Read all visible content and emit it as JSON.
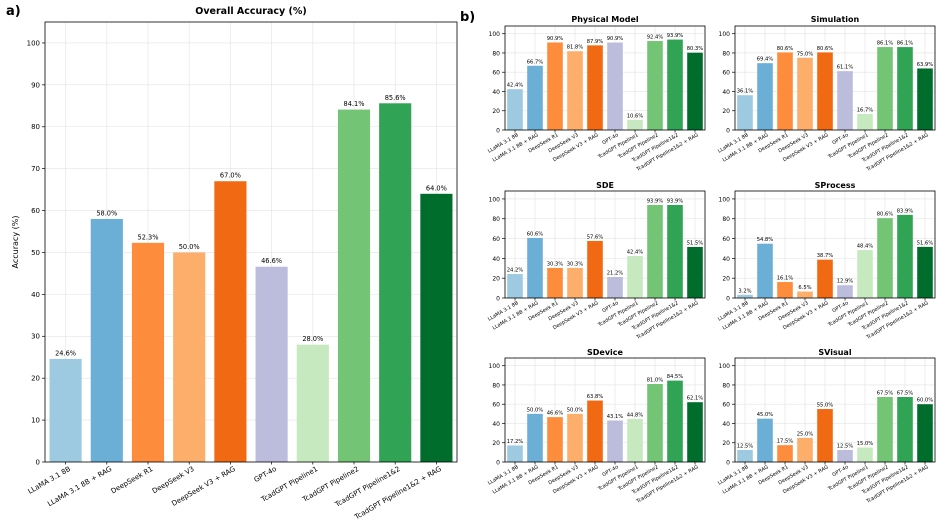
{
  "panel_a_label": "a)",
  "panel_b_label": "b)",
  "colors": [
    "#9ecae1",
    "#6baed6",
    "#fd8d3c",
    "#fdae6b",
    "#f16913",
    "#bcbddc",
    "#c7e9c0",
    "#74c476",
    "#31a354",
    "#006d2c"
  ],
  "chart_data": [
    {
      "type": "bar",
      "title": "Overall Accuracy (%)",
      "xlabel": "",
      "ylabel": "Accuracy (%)",
      "ylim": [
        0,
        105
      ],
      "yticks": [
        0,
        10,
        20,
        30,
        40,
        50,
        60,
        70,
        80,
        90,
        100
      ],
      "grid": true,
      "categories": [
        "LLaMA 3.1 8B",
        "LLaMA 3.1 8B + RAG",
        "DeepSeek R1",
        "DeepSeek V3",
        "DeepSeek V3 + RAG",
        "GPT-4o",
        "TcadGPT Pipeline1",
        "TcadGPT Pipeline2",
        "TcadGPT Pipeline1&2",
        "TcadGPT Pipeline1&2 + RAG"
      ],
      "values": [
        24.6,
        58.0,
        52.3,
        50.0,
        67.0,
        46.6,
        28.0,
        84.1,
        85.6,
        64.0
      ],
      "value_labels": [
        "24.6%",
        "58.0%",
        "52.3%",
        "50.0%",
        "67.0%",
        "46.6%",
        "28.0%",
        "84.1%",
        "85.6%",
        "64.0%"
      ]
    },
    {
      "type": "bar",
      "title": "Physical Model",
      "ylim": [
        0,
        108
      ],
      "yticks": [
        0,
        20,
        40,
        60,
        80,
        100
      ],
      "grid": true,
      "categories": [
        "LLaMA 3.1 8B",
        "LLaMA 3.1 8B + RAG",
        "DeepSeek R1",
        "DeepSeek V3",
        "DeepSeek V3 + RAG",
        "GPT-4o",
        "TcadGPT Pipeline1",
        "TcadGPT Pipeline2",
        "TcadGPT Pipeline1&2",
        "TcadGPT Pipeline1&2 + RAG"
      ],
      "values": [
        42.4,
        66.7,
        90.9,
        81.8,
        87.9,
        90.9,
        10.6,
        92.4,
        93.9,
        80.3
      ],
      "value_labels": [
        "42.4%",
        "66.7%",
        "90.9%",
        "81.8%",
        "87.9%",
        "90.9%",
        "10.6%",
        "92.4%",
        "93.9%",
        "80.3%"
      ]
    },
    {
      "type": "bar",
      "title": "Simulation",
      "ylim": [
        0,
        108
      ],
      "yticks": [
        0,
        20,
        40,
        60,
        80,
        100
      ],
      "grid": true,
      "categories": [
        "LLaMA 3.1 8B",
        "LLaMA 3.1 8B + RAG",
        "DeepSeek R1",
        "DeepSeek V3",
        "DeepSeek V3 + RAG",
        "GPT-4o",
        "TcadGPT Pipeline1",
        "TcadGPT Pipeline2",
        "TcadGPT Pipeline1&2",
        "TcadGPT Pipeline1&2 + RAG"
      ],
      "values": [
        36.1,
        69.4,
        80.6,
        75.0,
        80.6,
        61.1,
        16.7,
        86.1,
        86.1,
        63.9
      ],
      "value_labels": [
        "36.1%",
        "69.4%",
        "80.6%",
        "75.0%",
        "80.6%",
        "61.1%",
        "16.7%",
        "86.1%",
        "86.1%",
        "63.9%"
      ]
    },
    {
      "type": "bar",
      "title": "SDE",
      "ylim": [
        0,
        108
      ],
      "yticks": [
        0,
        20,
        40,
        60,
        80,
        100
      ],
      "grid": true,
      "categories": [
        "LLaMA 3.1 8B",
        "LLaMA 3.1 8B + RAG",
        "DeepSeek R1",
        "DeepSeek V3",
        "DeepSeek V3 + RAG",
        "GPT-4o",
        "TcadGPT Pipeline1",
        "TcadGPT Pipeline2",
        "TcadGPT Pipeline1&2",
        "TcadGPT Pipeline1&2 + RAG"
      ],
      "values": [
        24.2,
        60.6,
        30.3,
        30.3,
        57.6,
        21.2,
        42.4,
        93.9,
        93.9,
        51.5
      ],
      "value_labels": [
        "24.2%",
        "60.6%",
        "30.3%",
        "30.3%",
        "57.6%",
        "21.2%",
        "42.4%",
        "93.9%",
        "93.9%",
        "51.5%"
      ]
    },
    {
      "type": "bar",
      "title": "SProcess",
      "ylim": [
        0,
        108
      ],
      "yticks": [
        0,
        20,
        40,
        60,
        80,
        100
      ],
      "grid": true,
      "categories": [
        "LLaMA 3.1 8B",
        "LLaMA 3.1 8B + RAG",
        "DeepSeek R1",
        "DeepSeek V3",
        "DeepSeek V3 + RAG",
        "GPT-4o",
        "TcadGPT Pipeline1",
        "TcadGPT Pipeline2",
        "TcadGPT Pipeline1&2",
        "TcadGPT Pipeline1&2 + RAG"
      ],
      "values": [
        3.2,
        54.8,
        16.1,
        6.5,
        38.7,
        12.9,
        48.4,
        80.6,
        83.9,
        51.6
      ],
      "value_labels": [
        "3.2%",
        "54.8%",
        "16.1%",
        "6.5%",
        "38.7%",
        "12.9%",
        "48.4%",
        "80.6%",
        "83.9%",
        "51.6%"
      ]
    },
    {
      "type": "bar",
      "title": "SDevice",
      "ylim": [
        0,
        108
      ],
      "yticks": [
        0,
        20,
        40,
        60,
        80,
        100
      ],
      "grid": true,
      "categories": [
        "LLaMA 3.1 8B",
        "LLaMA 3.1 8B + RAG",
        "DeepSeek R1",
        "DeepSeek V3",
        "DeepSeek V3 + RAG",
        "GPT-4o",
        "TcadGPT Pipeline1",
        "TcadGPT Pipeline2",
        "TcadGPT Pipeline1&2",
        "TcadGPT Pipeline1&2 + RAG"
      ],
      "values": [
        17.2,
        50.0,
        46.6,
        50.0,
        63.8,
        43.1,
        44.8,
        81.0,
        84.5,
        62.1
      ],
      "value_labels": [
        "17.2%",
        "50.0%",
        "46.6%",
        "50.0%",
        "63.8%",
        "43.1%",
        "44.8%",
        "81.0%",
        "84.5%",
        "62.1%"
      ]
    },
    {
      "type": "bar",
      "title": "SVisual",
      "ylim": [
        0,
        108
      ],
      "yticks": [
        0,
        20,
        40,
        60,
        80,
        100
      ],
      "grid": true,
      "categories": [
        "LLaMA 3.1 8B",
        "LLaMA 3.1 8B + RAG",
        "DeepSeek R1",
        "DeepSeek V3",
        "DeepSeek V3 + RAG",
        "GPT-4o",
        "TcadGPT Pipeline1",
        "TcadGPT Pipeline2",
        "TcadGPT Pipeline1&2",
        "TcadGPT Pipeline1&2 + RAG"
      ],
      "values": [
        12.5,
        45.0,
        17.5,
        25.0,
        55.0,
        12.5,
        15.0,
        67.5,
        67.5,
        60.0
      ],
      "value_labels": [
        "12.5%",
        "45.0%",
        "17.5%",
        "25.0%",
        "55.0%",
        "12.5%",
        "15.0%",
        "67.5%",
        "67.5%",
        "60.0%"
      ]
    }
  ]
}
